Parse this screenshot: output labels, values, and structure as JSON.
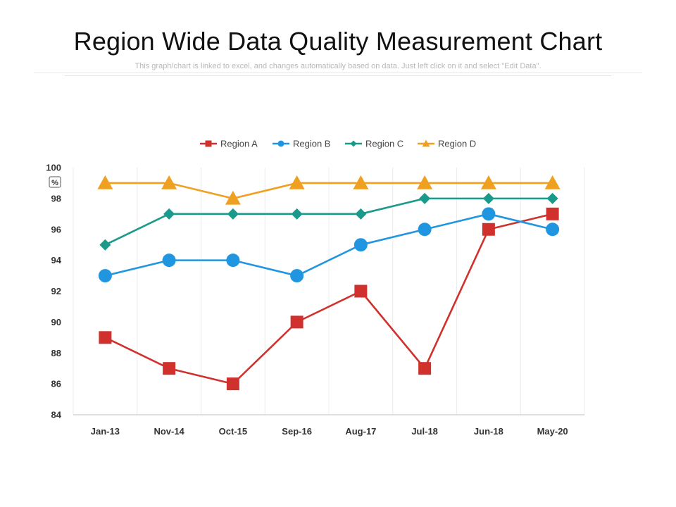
{
  "title": "Region Wide Data Quality Measurement Chart",
  "subtitle": "This graph/chart is linked to excel, and changes automatically based on data. Just left click on it and select \"Edit Data\".",
  "chart_data": {
    "type": "line",
    "title": "",
    "xlabel": "",
    "ylabel": "%",
    "ylim": [
      84,
      100
    ],
    "yticks": [
      84,
      86,
      88,
      90,
      92,
      94,
      96,
      98,
      100
    ],
    "categories": [
      "Jan-13",
      "Nov-14",
      "Oct-15",
      "Sep-16",
      "Aug-17",
      "Jul-18",
      "Jun-18",
      "May-20"
    ],
    "legend_position": "top-center",
    "series": [
      {
        "name": "Region A",
        "color": "#d0312d",
        "marker": "square",
        "values": [
          89,
          87,
          86,
          90,
          92,
          87,
          96,
          97
        ]
      },
      {
        "name": "Region B",
        "color": "#2196e0",
        "marker": "circle",
        "values": [
          93,
          94,
          94,
          93,
          95,
          96,
          97,
          96
        ]
      },
      {
        "name": "Region C",
        "color": "#1a9a8a",
        "marker": "diamond",
        "values": [
          95,
          97,
          97,
          97,
          97,
          98,
          98,
          98
        ]
      },
      {
        "name": "Region D",
        "color": "#f0a020",
        "marker": "triangle",
        "values": [
          99,
          99,
          98,
          99,
          99,
          99,
          99,
          99
        ]
      }
    ]
  }
}
